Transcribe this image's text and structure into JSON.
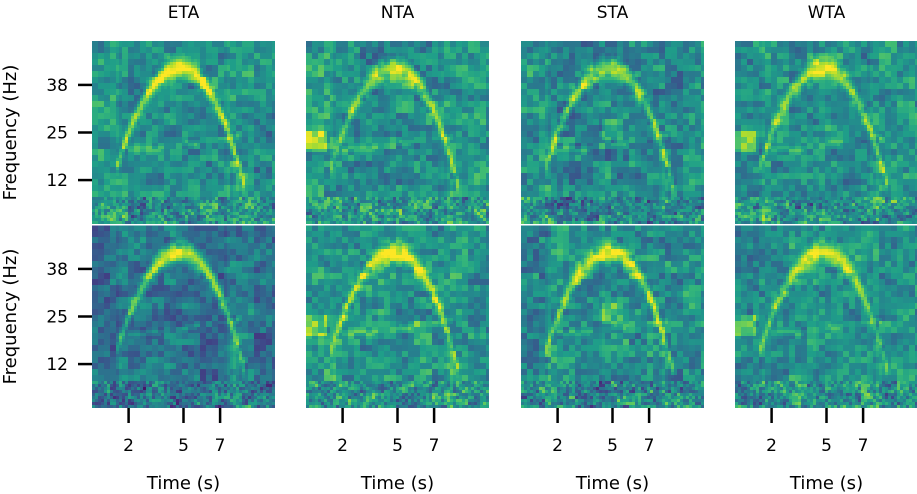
{
  "chart_data": {
    "type": "heatmap",
    "layout": {
      "rows": 2,
      "cols": 4
    },
    "column_titles": [
      "ETA",
      "NTA",
      "STA",
      "WTA"
    ],
    "xlabel": "Time (s)",
    "ylabel": "Frequency (Hz)",
    "x_range": [
      0,
      10
    ],
    "y_range": [
      0,
      50
    ],
    "x_ticks": [
      2,
      5,
      7
    ],
    "y_ticks": [
      12,
      25,
      38
    ],
    "colormap": "viridis",
    "grid": false,
    "panels": [
      {
        "row": 0,
        "col": 0,
        "title": "ETA"
      },
      {
        "row": 0,
        "col": 1,
        "title": "NTA"
      },
      {
        "row": 0,
        "col": 2,
        "title": "STA"
      },
      {
        "row": 0,
        "col": 3,
        "title": "WTA"
      },
      {
        "row": 1,
        "col": 0,
        "title": "ETA"
      },
      {
        "row": 1,
        "col": 1,
        "title": "NTA"
      },
      {
        "row": 1,
        "col": 2,
        "title": "STA"
      },
      {
        "row": 1,
        "col": 3,
        "title": "WTA"
      }
    ]
  }
}
